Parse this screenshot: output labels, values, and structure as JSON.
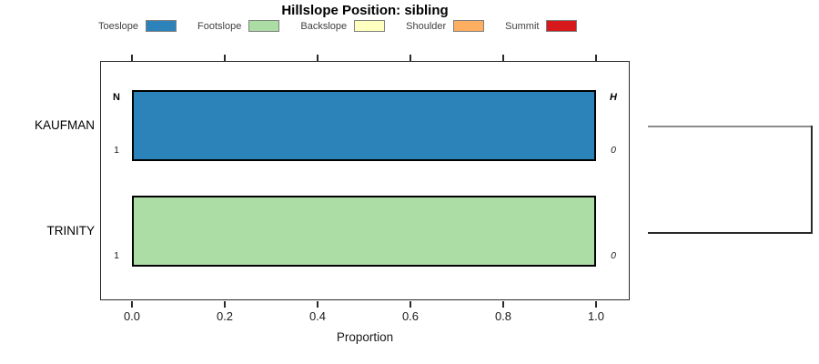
{
  "chart_data": {
    "type": "bar",
    "orientation": "horizontal",
    "title": "Hillslope Position: sibling",
    "xlabel": "Proportion",
    "xlim": [
      0,
      1
    ],
    "xticks": [
      "0.0",
      "0.2",
      "0.4",
      "0.6",
      "0.8",
      "1.0"
    ],
    "grid": false,
    "legend_position": "top",
    "legend": [
      {
        "label": "Toeslope",
        "color": "#2B83BA"
      },
      {
        "label": "Footslope",
        "color": "#ABDDA4"
      },
      {
        "label": "Backslope",
        "color": "#FFFFBF"
      },
      {
        "label": "Shoulder",
        "color": "#FDAE61"
      },
      {
        "label": "Summit",
        "color": "#D7191C"
      }
    ],
    "columns": {
      "left_header": "N",
      "right_header": "H"
    },
    "rows": [
      {
        "group": "KAUFMAN",
        "segments": [
          {
            "category": "Toeslope",
            "proportion": 1.0
          }
        ],
        "n": "1",
        "h": "0"
      },
      {
        "group": "TRINITY",
        "segments": [
          {
            "category": "Footslope",
            "proportion": 1.0
          }
        ],
        "n": "1",
        "h": "0"
      }
    ],
    "dendrogram": {
      "joins": [
        "KAUFMAN",
        "TRINITY"
      ],
      "top_branch_color": "#8C8C8C",
      "bottom_branch_color": "#2A2A2A"
    }
  }
}
